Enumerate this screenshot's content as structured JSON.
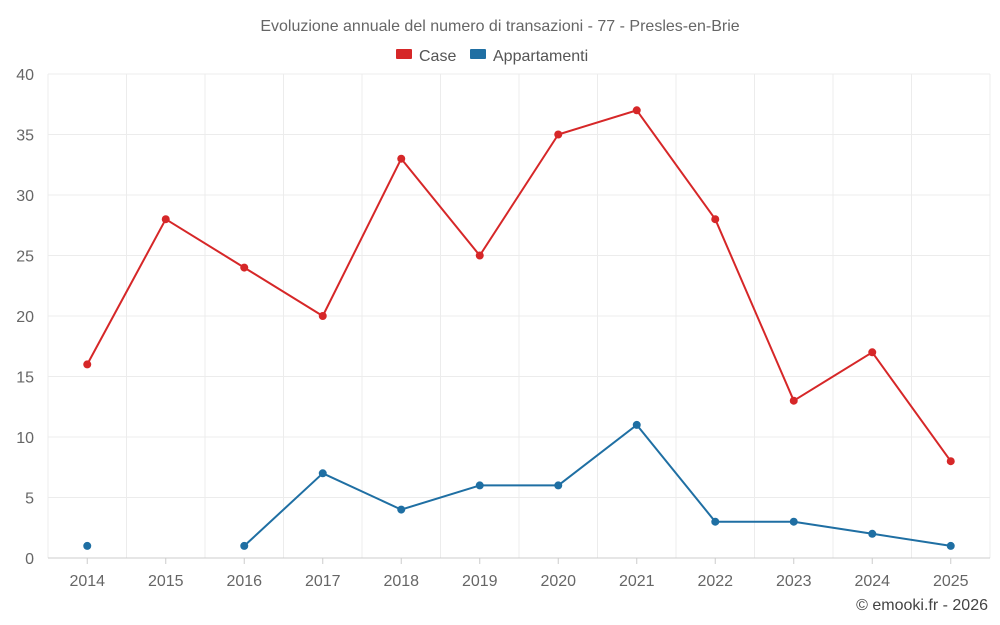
{
  "chart_data": {
    "type": "line",
    "title": "Evoluzione annuale del numero di transazioni - 77 - Presles-en-Brie",
    "xlabel": "",
    "ylabel": "",
    "categories": [
      "2014",
      "2015",
      "2016",
      "2017",
      "2018",
      "2019",
      "2020",
      "2021",
      "2022",
      "2023",
      "2024",
      "2025"
    ],
    "ylim": [
      0,
      40
    ],
    "yticks": [
      "0",
      "5",
      "10",
      "15",
      "20",
      "25",
      "30",
      "35",
      "40"
    ],
    "grid": true,
    "legend_position": "top-center",
    "series": [
      {
        "name": "Case",
        "color": "#d62728",
        "values": [
          16,
          28,
          24,
          20,
          33,
          25,
          35,
          37,
          28,
          13,
          17,
          8
        ]
      },
      {
        "name": "Appartamenti",
        "color": "#1f6fa3",
        "values": [
          1,
          null,
          1,
          7,
          4,
          6,
          6,
          11,
          3,
          3,
          2,
          1
        ]
      }
    ],
    "credit": "© emooki.fr - 2026"
  }
}
